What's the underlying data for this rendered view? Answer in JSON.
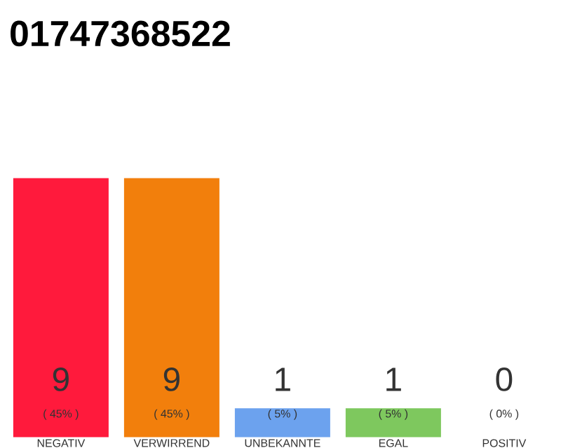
{
  "chart_data": {
    "type": "bar",
    "title": "01747368522",
    "categories": [
      "NEGATIV",
      "VERWIRREND",
      "UNBEKANNTE",
      "EGAL",
      "POSITIV"
    ],
    "values": [
      9,
      9,
      1,
      1,
      0
    ],
    "colors": [
      "#ff1a3c",
      "#f27f0c",
      "#6ca2ee",
      "#7ec85e",
      "#bbbbbb"
    ],
    "data_labels": true,
    "annotations": [
      "( 45% )",
      "( 45% )",
      "( 5% )",
      "( 5% )",
      "( 0% )"
    ]
  }
}
